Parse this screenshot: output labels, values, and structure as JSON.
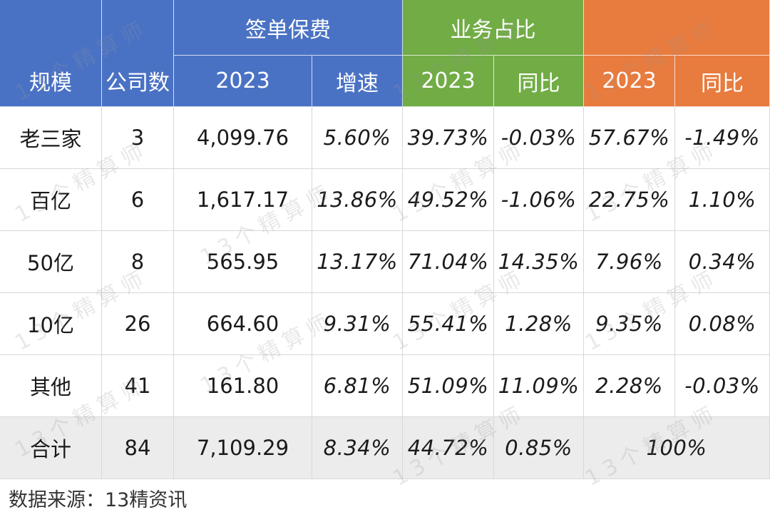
{
  "table": {
    "headers": {
      "scale": "规模",
      "company_count": "公司数",
      "premium_group": "签单保费",
      "premium_2023": "2023",
      "premium_growth": "增速",
      "share_group": "业务占比",
      "share_2023": "2023",
      "share_yoy": "同比",
      "third_group": "",
      "third_2023": "2023",
      "third_yoy": "同比"
    },
    "rows": [
      {
        "scale": "老三家",
        "count": "3",
        "premium": "4,099.76",
        "growth": "5.60%",
        "share": "39.73%",
        "share_yoy": "-0.03%",
        "third": "57.67%",
        "third_yoy": "-1.49%"
      },
      {
        "scale": "百亿",
        "count": "6",
        "premium": "1,617.17",
        "growth": "13.86%",
        "share": "49.52%",
        "share_yoy": "-1.06%",
        "third": "22.75%",
        "third_yoy": "1.10%"
      },
      {
        "scale": "50亿",
        "count": "8",
        "premium": "565.95",
        "growth": "13.17%",
        "share": "71.04%",
        "share_yoy": "14.35%",
        "third": "7.96%",
        "third_yoy": "0.34%"
      },
      {
        "scale": "10亿",
        "count": "26",
        "premium": "664.60",
        "growth": "9.31%",
        "share": "55.41%",
        "share_yoy": "1.28%",
        "third": "9.35%",
        "third_yoy": "0.08%"
      },
      {
        "scale": "其他",
        "count": "41",
        "premium": "161.80",
        "growth": "6.81%",
        "share": "51.09%",
        "share_yoy": "11.09%",
        "third": "2.28%",
        "third_yoy": "-0.03%"
      }
    ],
    "total": {
      "scale": "合计",
      "count": "84",
      "premium": "7,109.29",
      "growth": "8.34%",
      "share": "44.72%",
      "share_yoy": "0.85%",
      "third": "100%"
    }
  },
  "footer": {
    "source": "数据来源：13精资讯"
  },
  "watermark": "13个精算师",
  "colors": {
    "blue": "#4a72c4",
    "green": "#71ac45",
    "orange": "#e87b3e",
    "total_bg": "#ececec"
  }
}
